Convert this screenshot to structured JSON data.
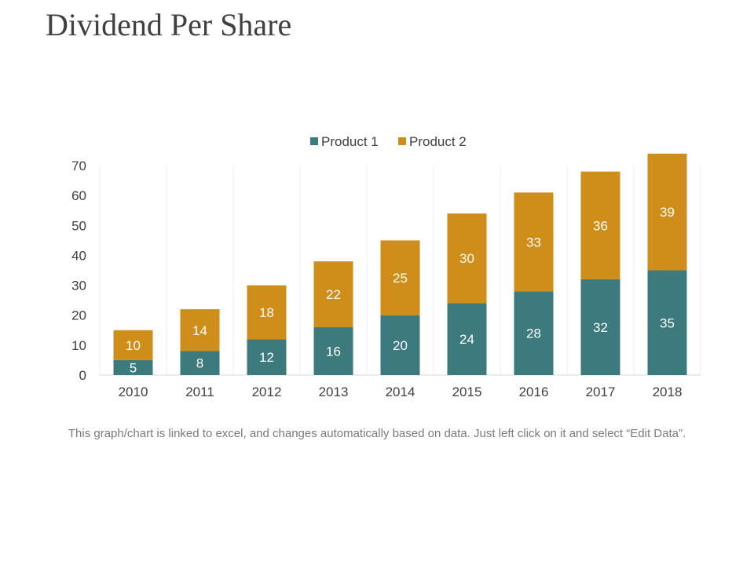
{
  "page": {
    "title": "Dividend Per Share",
    "footnote": "This graph/chart is linked to excel, and changes automatically based on data. Just left click on it and select “Edit Data”."
  },
  "chart_data": {
    "type": "bar",
    "stacked": true,
    "categories": [
      "2010",
      "2011",
      "2012",
      "2013",
      "2014",
      "2015",
      "2016",
      "2017",
      "2018"
    ],
    "series": [
      {
        "name": "Product 1",
        "color": "#3c7a7e",
        "values": [
          5,
          8,
          12,
          16,
          20,
          24,
          28,
          32,
          35
        ]
      },
      {
        "name": "Product 2",
        "color": "#cf8e1a",
        "values": [
          10,
          14,
          18,
          22,
          25,
          30,
          33,
          36,
          39
        ]
      }
    ],
    "ylim": [
      0,
      70
    ],
    "yticks": [
      0,
      10,
      20,
      30,
      40,
      50,
      60,
      70
    ],
    "grid": "vertical",
    "legend": "top-center",
    "data_labels": true
  }
}
